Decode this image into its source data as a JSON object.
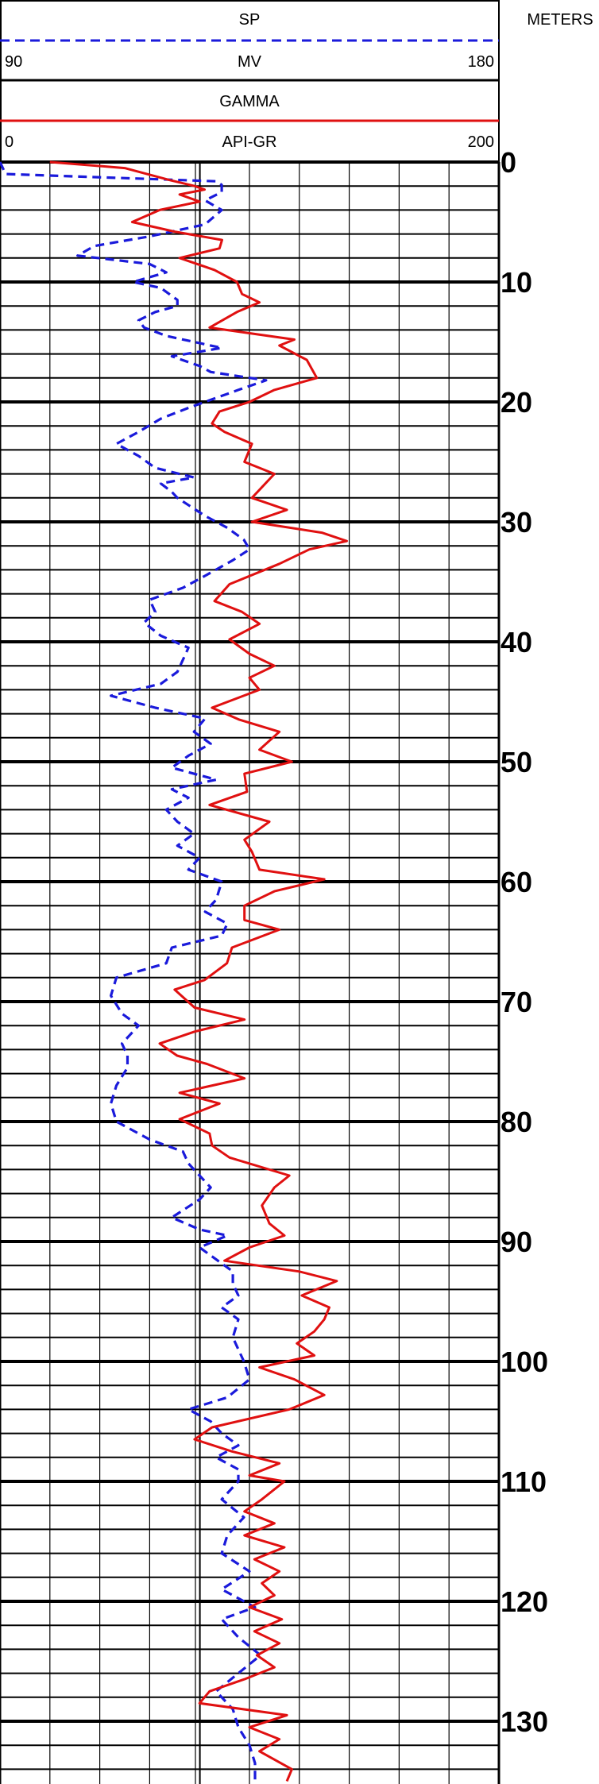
{
  "header": {
    "sp_title": "SP",
    "sp_unit": "MV",
    "sp_min_label": "90",
    "sp_max_label": "180",
    "gamma_title": "GAMMA",
    "gamma_unit": "API-GR",
    "gamma_min_label": "0",
    "gamma_max_label": "200",
    "depth_title": "METERS"
  },
  "colors": {
    "sp": "#1a1adb",
    "gamma": "#e01010",
    "grid": "#000000",
    "background": "#ffffff"
  },
  "chart_data": {
    "type": "line",
    "title": "",
    "depth_unit": "METERS",
    "depth_range": [
      0,
      135
    ],
    "depth_ticks": [
      0,
      10,
      20,
      30,
      40,
      50,
      60,
      70,
      80,
      90,
      100,
      110,
      120,
      130
    ],
    "grid": true,
    "series": [
      {
        "name": "SP",
        "unit": "MV",
        "scale": [
          90,
          180
        ],
        "style": "dashed",
        "points": [
          [
            0.0,
            90
          ],
          [
            1.0,
            91
          ],
          [
            1.6,
            129
          ],
          [
            1.9,
            130
          ],
          [
            2.5,
            130
          ],
          [
            3.2,
            127
          ],
          [
            4.0,
            130
          ],
          [
            5.2,
            127
          ],
          [
            6.2,
            117
          ],
          [
            7.0,
            107
          ],
          [
            7.8,
            104
          ],
          [
            8.5,
            117
          ],
          [
            9.2,
            120
          ],
          [
            10.0,
            114
          ],
          [
            10.5,
            119
          ],
          [
            11.5,
            122
          ],
          [
            12.0,
            122
          ],
          [
            12.5,
            118
          ],
          [
            13.2,
            115
          ],
          [
            13.8,
            116
          ],
          [
            14.5,
            120
          ],
          [
            15.5,
            130
          ],
          [
            16.2,
            121
          ],
          [
            17.0,
            126
          ],
          [
            17.5,
            128
          ],
          [
            18.2,
            138
          ],
          [
            19.0,
            133
          ],
          [
            20.5,
            124
          ],
          [
            21.4,
            119
          ],
          [
            22.5,
            115
          ],
          [
            23.5,
            111
          ],
          [
            24.5,
            115
          ],
          [
            25.5,
            118
          ],
          [
            26.3,
            125
          ],
          [
            26.8,
            119
          ],
          [
            27.5,
            121
          ],
          [
            28.0,
            122
          ],
          [
            29.5,
            127
          ],
          [
            30.5,
            131
          ],
          [
            31.5,
            134
          ],
          [
            32.3,
            135
          ],
          [
            33.2,
            132
          ],
          [
            34.5,
            127
          ],
          [
            35.5,
            123
          ],
          [
            36.5,
            117
          ],
          [
            37.5,
            118
          ],
          [
            38.4,
            116
          ],
          [
            39.5,
            119
          ],
          [
            40.5,
            124
          ],
          [
            41.5,
            123
          ],
          [
            42.5,
            122
          ],
          [
            43.5,
            119
          ],
          [
            44.5,
            110
          ],
          [
            45.5,
            118
          ],
          [
            46.4,
            127
          ],
          [
            47.5,
            125
          ],
          [
            48.5,
            128
          ],
          [
            49.5,
            124
          ],
          [
            50.5,
            121
          ],
          [
            51.5,
            129
          ],
          [
            52.3,
            121
          ],
          [
            53.0,
            124
          ],
          [
            54.0,
            120
          ],
          [
            55.0,
            122
          ],
          [
            56.0,
            125
          ],
          [
            57.0,
            122
          ],
          [
            58.0,
            126
          ],
          [
            59.0,
            124
          ],
          [
            60.0,
            130
          ],
          [
            61.5,
            129
          ],
          [
            62.5,
            127
          ],
          [
            63.5,
            131
          ],
          [
            64.5,
            130
          ],
          [
            65.5,
            121
          ],
          [
            66.8,
            120
          ],
          [
            68.0,
            111
          ],
          [
            69.5,
            110
          ],
          [
            71.0,
            112
          ],
          [
            72.0,
            115
          ],
          [
            73.5,
            112
          ],
          [
            74.5,
            113
          ],
          [
            75.5,
            113
          ],
          [
            77.0,
            111
          ],
          [
            78.5,
            110
          ],
          [
            80.0,
            111
          ],
          [
            81.5,
            117
          ],
          [
            82.5,
            123
          ],
          [
            83.5,
            124
          ],
          [
            84.5,
            126
          ],
          [
            85.5,
            128
          ],
          [
            86.5,
            126
          ],
          [
            88.0,
            121
          ],
          [
            89.0,
            126
          ],
          [
            89.5,
            131
          ],
          [
            90.5,
            126
          ],
          [
            91.5,
            129
          ],
          [
            92.5,
            132
          ],
          [
            93.5,
            132
          ],
          [
            94.5,
            133
          ],
          [
            95.5,
            130
          ],
          [
            96.5,
            133
          ],
          [
            98.0,
            132
          ],
          [
            100.0,
            134
          ],
          [
            101.5,
            135
          ],
          [
            103.0,
            131
          ],
          [
            104.0,
            124
          ],
          [
            105.0,
            128
          ],
          [
            106.0,
            130
          ],
          [
            107.0,
            133
          ],
          [
            108.0,
            129
          ],
          [
            109.0,
            133
          ],
          [
            110.0,
            133
          ],
          [
            111.5,
            130
          ],
          [
            113.0,
            134
          ],
          [
            114.5,
            131
          ],
          [
            116.0,
            130
          ],
          [
            117.5,
            135
          ],
          [
            119.0,
            130
          ],
          [
            120.5,
            136
          ],
          [
            121.5,
            130
          ],
          [
            123.0,
            133
          ],
          [
            124.5,
            137
          ],
          [
            126.0,
            133
          ],
          [
            127.5,
            129
          ],
          [
            129.0,
            132
          ],
          [
            130.5,
            133
          ],
          [
            132.0,
            135
          ],
          [
            133.5,
            136
          ],
          [
            135.0,
            136
          ]
        ]
      },
      {
        "name": "GAMMA",
        "unit": "API-GR",
        "scale": [
          0,
          200
        ],
        "style": "solid",
        "points": [
          [
            0.0,
            20
          ],
          [
            0.5,
            50
          ],
          [
            1.5,
            68
          ],
          [
            2.0,
            78
          ],
          [
            2.3,
            82
          ],
          [
            2.7,
            72
          ],
          [
            3.3,
            80
          ],
          [
            4.0,
            64
          ],
          [
            5.0,
            53
          ],
          [
            5.8,
            70
          ],
          [
            6.5,
            89
          ],
          [
            7.2,
            88
          ],
          [
            8.0,
            72
          ],
          [
            9.0,
            86
          ],
          [
            10.0,
            95
          ],
          [
            11.0,
            97
          ],
          [
            11.7,
            104
          ],
          [
            12.5,
            95
          ],
          [
            13.8,
            84
          ],
          [
            14.8,
            118
          ],
          [
            15.3,
            112
          ],
          [
            16.5,
            123
          ],
          [
            18.0,
            127
          ],
          [
            19.0,
            110
          ],
          [
            20.0,
            100
          ],
          [
            20.8,
            88
          ],
          [
            21.8,
            85
          ],
          [
            22.5,
            90
          ],
          [
            23.5,
            101
          ],
          [
            25.0,
            98
          ],
          [
            26.0,
            110
          ],
          [
            28.0,
            101
          ],
          [
            29.0,
            115
          ],
          [
            30.0,
            101
          ],
          [
            30.9,
            129
          ],
          [
            31.6,
            139
          ],
          [
            32.3,
            124
          ],
          [
            33.5,
            112
          ],
          [
            35.2,
            92
          ],
          [
            36.6,
            86
          ],
          [
            37.5,
            97
          ],
          [
            38.5,
            104
          ],
          [
            39.8,
            92
          ],
          [
            41.0,
            100
          ],
          [
            42.0,
            110
          ],
          [
            43.0,
            100
          ],
          [
            44.0,
            104
          ],
          [
            45.5,
            85
          ],
          [
            46.5,
            96
          ],
          [
            47.5,
            112
          ],
          [
            49.0,
            104
          ],
          [
            50.0,
            117
          ],
          [
            51.0,
            98
          ],
          [
            52.5,
            99
          ],
          [
            53.6,
            84
          ],
          [
            55.0,
            108
          ],
          [
            56.5,
            98
          ],
          [
            57.5,
            101
          ],
          [
            59.0,
            104
          ],
          [
            59.8,
            130
          ],
          [
            60.8,
            110
          ],
          [
            62.0,
            98
          ],
          [
            63.2,
            98
          ],
          [
            64.0,
            112
          ],
          [
            65.5,
            93
          ],
          [
            66.8,
            91
          ],
          [
            68.2,
            82
          ],
          [
            69.0,
            70
          ],
          [
            70.5,
            78
          ],
          [
            71.5,
            98
          ],
          [
            72.5,
            78
          ],
          [
            73.5,
            64
          ],
          [
            74.5,
            71
          ],
          [
            75.2,
            83
          ],
          [
            76.4,
            98
          ],
          [
            77.6,
            72
          ],
          [
            78.5,
            88
          ],
          [
            79.8,
            72
          ],
          [
            81.0,
            84
          ],
          [
            82.0,
            85
          ],
          [
            83.0,
            92
          ],
          [
            84.5,
            116
          ],
          [
            85.5,
            110
          ],
          [
            87.0,
            105
          ],
          [
            88.5,
            108
          ],
          [
            89.5,
            114
          ],
          [
            90.5,
            100
          ],
          [
            91.6,
            90
          ],
          [
            92.5,
            120
          ],
          [
            93.3,
            135
          ],
          [
            94.5,
            121
          ],
          [
            95.5,
            132
          ],
          [
            96.5,
            130
          ],
          [
            97.5,
            126
          ],
          [
            98.5,
            119
          ],
          [
            99.5,
            126
          ],
          [
            100.5,
            104
          ],
          [
            101.5,
            118
          ],
          [
            102.8,
            130
          ],
          [
            104.0,
            116
          ],
          [
            105.5,
            85
          ],
          [
            106.5,
            78
          ],
          [
            107.5,
            93
          ],
          [
            108.5,
            112
          ],
          [
            109.5,
            100
          ],
          [
            110.0,
            114
          ],
          [
            111.5,
            105
          ],
          [
            112.5,
            98
          ],
          [
            113.5,
            110
          ],
          [
            114.5,
            98
          ],
          [
            115.5,
            114
          ],
          [
            116.5,
            102
          ],
          [
            117.5,
            112
          ],
          [
            118.5,
            105
          ],
          [
            119.5,
            110
          ],
          [
            120.5,
            100
          ],
          [
            121.5,
            113
          ],
          [
            122.5,
            102
          ],
          [
            123.5,
            112
          ],
          [
            124.5,
            103
          ],
          [
            125.5,
            110
          ],
          [
            126.5,
            98
          ],
          [
            127.5,
            84
          ],
          [
            128.5,
            80
          ],
          [
            129.5,
            115
          ],
          [
            130.5,
            100
          ],
          [
            131.5,
            112
          ],
          [
            132.5,
            104
          ],
          [
            134.0,
            117
          ],
          [
            135.0,
            115
          ]
        ]
      }
    ]
  }
}
